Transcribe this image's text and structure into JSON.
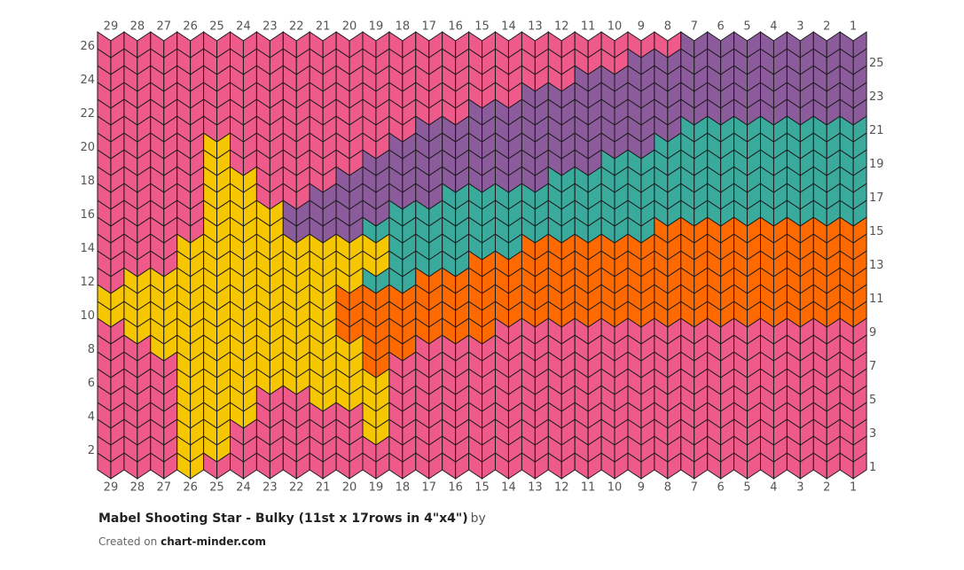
{
  "columns": [
    29,
    28,
    27,
    26,
    25,
    24,
    23,
    22,
    21,
    20,
    19,
    18,
    17,
    16,
    15,
    14,
    13,
    12,
    11,
    10,
    9,
    8,
    7,
    6,
    5,
    4,
    3,
    2,
    1
  ],
  "rows": [
    1,
    2,
    3,
    4,
    5,
    6,
    7,
    8,
    9,
    10,
    11,
    12,
    13,
    14,
    15,
    16,
    17,
    18,
    19,
    20,
    21,
    22,
    23,
    24,
    25,
    26
  ],
  "stitch_colors": [
    [
      "#ee5a8a",
      "#ee5a8a",
      "#ee5a8a",
      "#f6c600",
      "#ee5a8a",
      "#ee5a8a",
      "#ee5a8a",
      "#ee5a8a",
      "#ee5a8a",
      "#ee5a8a",
      "#ee5a8a",
      "#ee5a8a",
      "#ee5a8a",
      "#ee5a8a",
      "#ee5a8a",
      "#ee5a8a",
      "#ee5a8a",
      "#ee5a8a",
      "#ee5a8a",
      "#ee5a8a",
      "#ee5a8a",
      "#ee5a8a",
      "#ee5a8a",
      "#ee5a8a",
      "#ee5a8a",
      "#ee5a8a",
      "#ee5a8a",
      "#ee5a8a",
      "#ee5a8a"
    ],
    [
      "#ee5a8a",
      "#ee5a8a",
      "#ee5a8a",
      "#f6c600",
      "#f6c600",
      "#ee5a8a",
      "#ee5a8a",
      "#ee5a8a",
      "#ee5a8a",
      "#ee5a8a",
      "#ee5a8a",
      "#ee5a8a",
      "#ee5a8a",
      "#ee5a8a",
      "#ee5a8a",
      "#ee5a8a",
      "#ee5a8a",
      "#ee5a8a",
      "#ee5a8a",
      "#ee5a8a",
      "#ee5a8a",
      "#ee5a8a",
      "#ee5a8a",
      "#ee5a8a",
      "#ee5a8a",
      "#ee5a8a",
      "#ee5a8a",
      "#ee5a8a",
      "#ee5a8a"
    ],
    [
      "#ee5a8a",
      "#ee5a8a",
      "#ee5a8a",
      "#f6c600",
      "#f6c600",
      "#ee5a8a",
      "#ee5a8a",
      "#ee5a8a",
      "#ee5a8a",
      "#ee5a8a",
      "#f6c600",
      "#ee5a8a",
      "#ee5a8a",
      "#ee5a8a",
      "#ee5a8a",
      "#ee5a8a",
      "#ee5a8a",
      "#ee5a8a",
      "#ee5a8a",
      "#ee5a8a",
      "#ee5a8a",
      "#ee5a8a",
      "#ee5a8a",
      "#ee5a8a",
      "#ee5a8a",
      "#ee5a8a",
      "#ee5a8a",
      "#ee5a8a",
      "#ee5a8a"
    ],
    [
      "#ee5a8a",
      "#ee5a8a",
      "#ee5a8a",
      "#f6c600",
      "#f6c600",
      "#f6c600",
      "#ee5a8a",
      "#ee5a8a",
      "#ee5a8a",
      "#ee5a8a",
      "#f6c600",
      "#ee5a8a",
      "#ee5a8a",
      "#ee5a8a",
      "#ee5a8a",
      "#ee5a8a",
      "#ee5a8a",
      "#ee5a8a",
      "#ee5a8a",
      "#ee5a8a",
      "#ee5a8a",
      "#ee5a8a",
      "#ee5a8a",
      "#ee5a8a",
      "#ee5a8a",
      "#ee5a8a",
      "#ee5a8a",
      "#ee5a8a",
      "#ee5a8a"
    ],
    [
      "#ee5a8a",
      "#ee5a8a",
      "#ee5a8a",
      "#f6c600",
      "#f6c600",
      "#f6c600",
      "#ee5a8a",
      "#ee5a8a",
      "#f6c600",
      "#f6c600",
      "#f6c600",
      "#ee5a8a",
      "#ee5a8a",
      "#ee5a8a",
      "#ee5a8a",
      "#ee5a8a",
      "#ee5a8a",
      "#ee5a8a",
      "#ee5a8a",
      "#ee5a8a",
      "#ee5a8a",
      "#ee5a8a",
      "#ee5a8a",
      "#ee5a8a",
      "#ee5a8a",
      "#ee5a8a",
      "#ee5a8a",
      "#ee5a8a",
      "#ee5a8a"
    ],
    [
      "#ee5a8a",
      "#ee5a8a",
      "#ee5a8a",
      "#f6c600",
      "#f6c600",
      "#f6c600",
      "#f6c600",
      "#f6c600",
      "#f6c600",
      "#f6c600",
      "#f6c600",
      "#ee5a8a",
      "#ee5a8a",
      "#ee5a8a",
      "#ee5a8a",
      "#ee5a8a",
      "#ee5a8a",
      "#ee5a8a",
      "#ee5a8a",
      "#ee5a8a",
      "#ee5a8a",
      "#ee5a8a",
      "#ee5a8a",
      "#ee5a8a",
      "#ee5a8a",
      "#ee5a8a",
      "#ee5a8a",
      "#ee5a8a",
      "#ee5a8a"
    ],
    [
      "#ee5a8a",
      "#ee5a8a",
      "#ee5a8a",
      "#f6c600",
      "#f6c600",
      "#f6c600",
      "#f6c600",
      "#f6c600",
      "#f6c600",
      "#f6c600",
      "#ff6a00",
      "#ee5a8a",
      "#ee5a8a",
      "#ee5a8a",
      "#ee5a8a",
      "#ee5a8a",
      "#ee5a8a",
      "#ee5a8a",
      "#ee5a8a",
      "#ee5a8a",
      "#ee5a8a",
      "#ee5a8a",
      "#ee5a8a",
      "#ee5a8a",
      "#ee5a8a",
      "#ee5a8a",
      "#ee5a8a",
      "#ee5a8a",
      "#ee5a8a"
    ],
    [
      "#ee5a8a",
      "#ee5a8a",
      "#f6c600",
      "#f6c600",
      "#f6c600",
      "#f6c600",
      "#f6c600",
      "#f6c600",
      "#f6c600",
      "#f6c600",
      "#ff6a00",
      "#ff6a00",
      "#ee5a8a",
      "#ee5a8a",
      "#ee5a8a",
      "#ee5a8a",
      "#ee5a8a",
      "#ee5a8a",
      "#ee5a8a",
      "#ee5a8a",
      "#ee5a8a",
      "#ee5a8a",
      "#ee5a8a",
      "#ee5a8a",
      "#ee5a8a",
      "#ee5a8a",
      "#ee5a8a",
      "#ee5a8a",
      "#ee5a8a"
    ],
    [
      "#ee5a8a",
      "#f6c600",
      "#f6c600",
      "#f6c600",
      "#f6c600",
      "#f6c600",
      "#f6c600",
      "#f6c600",
      "#f6c600",
      "#ff6a00",
      "#ff6a00",
      "#ff6a00",
      "#ff6a00",
      "#ff6a00",
      "#ff6a00",
      "#ee5a8a",
      "#ee5a8a",
      "#ee5a8a",
      "#ee5a8a",
      "#ee5a8a",
      "#ee5a8a",
      "#ee5a8a",
      "#ee5a8a",
      "#ee5a8a",
      "#ee5a8a",
      "#ee5a8a",
      "#ee5a8a",
      "#ee5a8a",
      "#ee5a8a"
    ],
    [
      "#f6c600",
      "#f6c600",
      "#f6c600",
      "#f6c600",
      "#f6c600",
      "#f6c600",
      "#f6c600",
      "#f6c600",
      "#f6c600",
      "#ff6a00",
      "#ff6a00",
      "#ff6a00",
      "#ff6a00",
      "#ff6a00",
      "#ff6a00",
      "#ff6a00",
      "#ff6a00",
      "#ff6a00",
      "#ff6a00",
      "#ff6a00",
      "#ff6a00",
      "#ff6a00",
      "#ff6a00",
      "#ff6a00",
      "#ff6a00",
      "#ff6a00",
      "#ff6a00",
      "#ff6a00",
      "#ff6a00"
    ],
    [
      "#f6c600",
      "#f6c600",
      "#f6c600",
      "#f6c600",
      "#f6c600",
      "#f6c600",
      "#f6c600",
      "#f6c600",
      "#f6c600",
      "#ff6a00",
      "#ff6a00",
      "#ff6a00",
      "#ff6a00",
      "#ff6a00",
      "#ff6a00",
      "#ff6a00",
      "#ff6a00",
      "#ff6a00",
      "#ff6a00",
      "#ff6a00",
      "#ff6a00",
      "#ff6a00",
      "#ff6a00",
      "#ff6a00",
      "#ff6a00",
      "#ff6a00",
      "#ff6a00",
      "#ff6a00",
      "#ff6a00"
    ],
    [
      "#ee5a8a",
      "#f6c600",
      "#f6c600",
      "#f6c600",
      "#f6c600",
      "#f6c600",
      "#f6c600",
      "#f6c600",
      "#f6c600",
      "#f6c600",
      "#3aaa9c",
      "#3aaa9c",
      "#ff6a00",
      "#ff6a00",
      "#ff6a00",
      "#ff6a00",
      "#ff6a00",
      "#ff6a00",
      "#ff6a00",
      "#ff6a00",
      "#ff6a00",
      "#ff6a00",
      "#ff6a00",
      "#ff6a00",
      "#ff6a00",
      "#ff6a00",
      "#ff6a00",
      "#ff6a00",
      "#ff6a00"
    ],
    [
      "#ee5a8a",
      "#ee5a8a",
      "#ee5a8a",
      "#f6c600",
      "#f6c600",
      "#f6c600",
      "#f6c600",
      "#f6c600",
      "#f6c600",
      "#f6c600",
      "#f6c600",
      "#3aaa9c",
      "#3aaa9c",
      "#3aaa9c",
      "#ff6a00",
      "#ff6a00",
      "#ff6a00",
      "#ff6a00",
      "#ff6a00",
      "#ff6a00",
      "#ff6a00",
      "#ff6a00",
      "#ff6a00",
      "#ff6a00",
      "#ff6a00",
      "#ff6a00",
      "#ff6a00",
      "#ff6a00",
      "#ff6a00"
    ],
    [
      "#ee5a8a",
      "#ee5a8a",
      "#ee5a8a",
      "#f6c600",
      "#f6c600",
      "#f6c600",
      "#f6c600",
      "#f6c600",
      "#f6c600",
      "#f6c600",
      "#f6c600",
      "#3aaa9c",
      "#3aaa9c",
      "#3aaa9c",
      "#3aaa9c",
      "#3aaa9c",
      "#ff6a00",
      "#ff6a00",
      "#ff6a00",
      "#ff6a00",
      "#ff6a00",
      "#ff6a00",
      "#ff6a00",
      "#ff6a00",
      "#ff6a00",
      "#ff6a00",
      "#ff6a00",
      "#ff6a00",
      "#ff6a00"
    ],
    [
      "#ee5a8a",
      "#ee5a8a",
      "#ee5a8a",
      "#ee5a8a",
      "#f6c600",
      "#f6c600",
      "#f6c600",
      "#8c5b9b",
      "#8c5b9b",
      "#8c5b9b",
      "#3aaa9c",
      "#3aaa9c",
      "#3aaa9c",
      "#3aaa9c",
      "#3aaa9c",
      "#3aaa9c",
      "#3aaa9c",
      "#3aaa9c",
      "#3aaa9c",
      "#3aaa9c",
      "#3aaa9c",
      "#ff6a00",
      "#ff6a00",
      "#ff6a00",
      "#ff6a00",
      "#ff6a00",
      "#ff6a00",
      "#ff6a00",
      "#ff6a00"
    ],
    [
      "#ee5a8a",
      "#ee5a8a",
      "#ee5a8a",
      "#ee5a8a",
      "#f6c600",
      "#f6c600",
      "#f6c600",
      "#8c5b9b",
      "#8c5b9b",
      "#8c5b9b",
      "#8c5b9b",
      "#3aaa9c",
      "#3aaa9c",
      "#3aaa9c",
      "#3aaa9c",
      "#3aaa9c",
      "#3aaa9c",
      "#3aaa9c",
      "#3aaa9c",
      "#3aaa9c",
      "#3aaa9c",
      "#3aaa9c",
      "#3aaa9c",
      "#3aaa9c",
      "#3aaa9c",
      "#3aaa9c",
      "#3aaa9c",
      "#3aaa9c",
      "#3aaa9c"
    ],
    [
      "#ee5a8a",
      "#ee5a8a",
      "#ee5a8a",
      "#ee5a8a",
      "#f6c600",
      "#f6c600",
      "#ee5a8a",
      "#ee5a8a",
      "#8c5b9b",
      "#8c5b9b",
      "#8c5b9b",
      "#8c5b9b",
      "#8c5b9b",
      "#3aaa9c",
      "#3aaa9c",
      "#3aaa9c",
      "#3aaa9c",
      "#3aaa9c",
      "#3aaa9c",
      "#3aaa9c",
      "#3aaa9c",
      "#3aaa9c",
      "#3aaa9c",
      "#3aaa9c",
      "#3aaa9c",
      "#3aaa9c",
      "#3aaa9c",
      "#3aaa9c",
      "#3aaa9c"
    ],
    [
      "#ee5a8a",
      "#ee5a8a",
      "#ee5a8a",
      "#ee5a8a",
      "#f6c600",
      "#f6c600",
      "#ee5a8a",
      "#ee5a8a",
      "#ee5a8a",
      "#8c5b9b",
      "#8c5b9b",
      "#8c5b9b",
      "#8c5b9b",
      "#8c5b9b",
      "#8c5b9b",
      "#8c5b9b",
      "#8c5b9b",
      "#3aaa9c",
      "#3aaa9c",
      "#3aaa9c",
      "#3aaa9c",
      "#3aaa9c",
      "#3aaa9c",
      "#3aaa9c",
      "#3aaa9c",
      "#3aaa9c",
      "#3aaa9c",
      "#3aaa9c",
      "#3aaa9c"
    ],
    [
      "#ee5a8a",
      "#ee5a8a",
      "#ee5a8a",
      "#ee5a8a",
      "#f6c600",
      "#ee5a8a",
      "#ee5a8a",
      "#ee5a8a",
      "#ee5a8a",
      "#ee5a8a",
      "#8c5b9b",
      "#8c5b9b",
      "#8c5b9b",
      "#8c5b9b",
      "#8c5b9b",
      "#8c5b9b",
      "#8c5b9b",
      "#8c5b9b",
      "#8c5b9b",
      "#3aaa9c",
      "#3aaa9c",
      "#3aaa9c",
      "#3aaa9c",
      "#3aaa9c",
      "#3aaa9c",
      "#3aaa9c",
      "#3aaa9c",
      "#3aaa9c",
      "#3aaa9c"
    ],
    [
      "#ee5a8a",
      "#ee5a8a",
      "#ee5a8a",
      "#ee5a8a",
      "#f6c600",
      "#ee5a8a",
      "#ee5a8a",
      "#ee5a8a",
      "#ee5a8a",
      "#ee5a8a",
      "#ee5a8a",
      "#8c5b9b",
      "#8c5b9b",
      "#8c5b9b",
      "#8c5b9b",
      "#8c5b9b",
      "#8c5b9b",
      "#8c5b9b",
      "#8c5b9b",
      "#8c5b9b",
      "#8c5b9b",
      "#3aaa9c",
      "#3aaa9c",
      "#3aaa9c",
      "#3aaa9c",
      "#3aaa9c",
      "#3aaa9c",
      "#3aaa9c",
      "#3aaa9c"
    ],
    [
      "#ee5a8a",
      "#ee5a8a",
      "#ee5a8a",
      "#ee5a8a",
      "#ee5a8a",
      "#ee5a8a",
      "#ee5a8a",
      "#ee5a8a",
      "#ee5a8a",
      "#ee5a8a",
      "#ee5a8a",
      "#ee5a8a",
      "#8c5b9b",
      "#8c5b9b",
      "#8c5b9b",
      "#8c5b9b",
      "#8c5b9b",
      "#8c5b9b",
      "#8c5b9b",
      "#8c5b9b",
      "#8c5b9b",
      "#8c5b9b",
      "#3aaa9c",
      "#3aaa9c",
      "#3aaa9c",
      "#3aaa9c",
      "#3aaa9c",
      "#3aaa9c",
      "#3aaa9c"
    ],
    [
      "#ee5a8a",
      "#ee5a8a",
      "#ee5a8a",
      "#ee5a8a",
      "#ee5a8a",
      "#ee5a8a",
      "#ee5a8a",
      "#ee5a8a",
      "#ee5a8a",
      "#ee5a8a",
      "#ee5a8a",
      "#ee5a8a",
      "#ee5a8a",
      "#ee5a8a",
      "#8c5b9b",
      "#8c5b9b",
      "#8c5b9b",
      "#8c5b9b",
      "#8c5b9b",
      "#8c5b9b",
      "#8c5b9b",
      "#8c5b9b",
      "#8c5b9b",
      "#8c5b9b",
      "#8c5b9b",
      "#8c5b9b",
      "#8c5b9b",
      "#8c5b9b",
      "#8c5b9b"
    ],
    [
      "#ee5a8a",
      "#ee5a8a",
      "#ee5a8a",
      "#ee5a8a",
      "#ee5a8a",
      "#ee5a8a",
      "#ee5a8a",
      "#ee5a8a",
      "#ee5a8a",
      "#ee5a8a",
      "#ee5a8a",
      "#ee5a8a",
      "#ee5a8a",
      "#ee5a8a",
      "#ee5a8a",
      "#ee5a8a",
      "#8c5b9b",
      "#8c5b9b",
      "#8c5b9b",
      "#8c5b9b",
      "#8c5b9b",
      "#8c5b9b",
      "#8c5b9b",
      "#8c5b9b",
      "#8c5b9b",
      "#8c5b9b",
      "#8c5b9b",
      "#8c5b9b",
      "#8c5b9b"
    ],
    [
      "#ee5a8a",
      "#ee5a8a",
      "#ee5a8a",
      "#ee5a8a",
      "#ee5a8a",
      "#ee5a8a",
      "#ee5a8a",
      "#ee5a8a",
      "#ee5a8a",
      "#ee5a8a",
      "#ee5a8a",
      "#ee5a8a",
      "#ee5a8a",
      "#ee5a8a",
      "#ee5a8a",
      "#ee5a8a",
      "#ee5a8a",
      "#ee5a8a",
      "#8c5b9b",
      "#8c5b9b",
      "#8c5b9b",
      "#8c5b9b",
      "#8c5b9b",
      "#8c5b9b",
      "#8c5b9b",
      "#8c5b9b",
      "#8c5b9b",
      "#8c5b9b",
      "#8c5b9b"
    ],
    [
      "#ee5a8a",
      "#ee5a8a",
      "#ee5a8a",
      "#ee5a8a",
      "#ee5a8a",
      "#ee5a8a",
      "#ee5a8a",
      "#ee5a8a",
      "#ee5a8a",
      "#ee5a8a",
      "#ee5a8a",
      "#ee5a8a",
      "#ee5a8a",
      "#ee5a8a",
      "#ee5a8a",
      "#ee5a8a",
      "#ee5a8a",
      "#ee5a8a",
      "#ee5a8a",
      "#ee5a8a",
      "#8c5b9b",
      "#8c5b9b",
      "#8c5b9b",
      "#8c5b9b",
      "#8c5b9b",
      "#8c5b9b",
      "#8c5b9b",
      "#8c5b9b",
      "#8c5b9b"
    ],
    [
      "#ee5a8a",
      "#ee5a8a",
      "#ee5a8a",
      "#ee5a8a",
      "#ee5a8a",
      "#ee5a8a",
      "#ee5a8a",
      "#ee5a8a",
      "#ee5a8a",
      "#ee5a8a",
      "#ee5a8a",
      "#ee5a8a",
      "#ee5a8a",
      "#ee5a8a",
      "#ee5a8a",
      "#ee5a8a",
      "#ee5a8a",
      "#ee5a8a",
      "#ee5a8a",
      "#ee5a8a",
      "#ee5a8a",
      "#ee5a8a",
      "#8c5b9b",
      "#8c5b9b",
      "#8c5b9b",
      "#8c5b9b",
      "#8c5b9b",
      "#8c5b9b",
      "#8c5b9b"
    ]
  ],
  "footer": {
    "title": "Mabel Shooting Star - Bulky (11st x 17rows in 4\"x4\")",
    "by": "by",
    "created_on": "Created on",
    "site": "chart-minder.com"
  }
}
